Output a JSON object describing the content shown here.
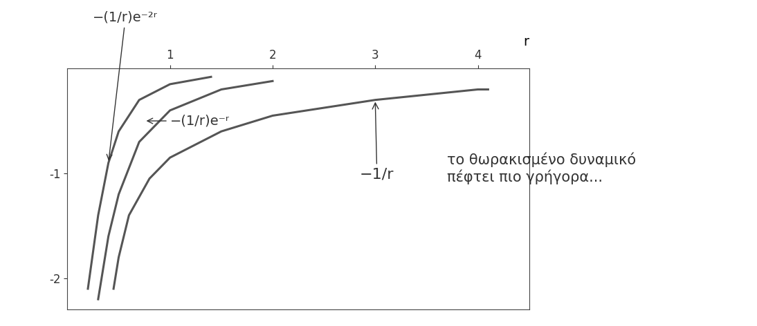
{
  "chart_data": {
    "type": "line",
    "x_label": "r",
    "annotation": "το θωρακισμένο δυναμικό\nπέφτει πιο γρήγορα...",
    "series": [
      {
        "name": "−1/r",
        "color": "#555555",
        "x": [
          0.45,
          0.5,
          0.6,
          0.8,
          1.0,
          1.5,
          2.0,
          3.0,
          4.0,
          4.1
        ],
        "values": [
          -2.1,
          -1.8,
          -1.4,
          -1.05,
          -0.85,
          -0.6,
          -0.45,
          -0.3,
          -0.2,
          -0.2
        ]
      },
      {
        "name": "−(1/r)e⁻ʳ",
        "color": "#555555",
        "x": [
          0.3,
          0.4,
          0.5,
          0.7,
          1.0,
          1.5,
          2.0
        ],
        "values": [
          -2.2,
          -1.6,
          -1.2,
          -0.7,
          -0.4,
          -0.2,
          -0.12
        ]
      },
      {
        "name": "−(1/r)e⁻²ʳ",
        "color": "#555555",
        "x": [
          0.2,
          0.3,
          0.4,
          0.5,
          0.7,
          1.0,
          1.4
        ],
        "values": [
          -2.1,
          -1.4,
          -0.9,
          -0.6,
          -0.3,
          -0.15,
          -0.08
        ]
      }
    ],
    "xlim": [
      0,
      4.5
    ],
    "ylim": [
      -2.3,
      0
    ],
    "xticks": [
      1,
      2,
      3,
      4
    ],
    "yticks": [
      -2,
      -1
    ],
    "grid": false
  }
}
